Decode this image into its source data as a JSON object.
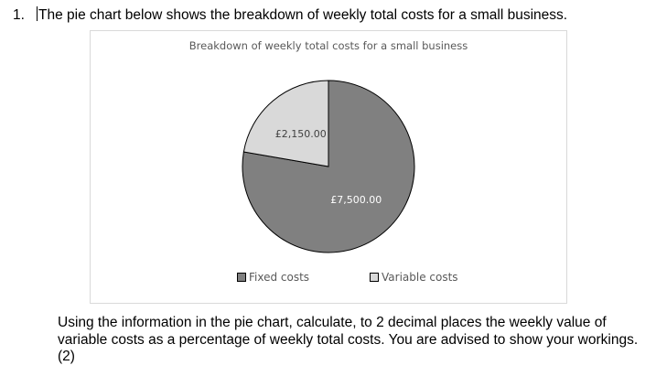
{
  "question": {
    "number": "1.",
    "intro": "The pie chart below shows the breakdown of weekly total costs for a small business.",
    "instruction": "Using the information in the pie chart, calculate, to 2 decimal places the weekly value of variable costs as a percentage of weekly total costs. You are advised to show your workings.",
    "marks": "(2)"
  },
  "chart_data": {
    "type": "pie",
    "title": "Breakdown of weekly total costs for a small business",
    "slices": [
      {
        "name": "Fixed costs",
        "value": 7500,
        "label": "£7,500.00",
        "color": "#808080",
        "label_color": "#ffffff"
      },
      {
        "name": "Variable costs",
        "value": 2150,
        "label": "£2,150.00",
        "color": "#d9d9d9",
        "label_color": "#404040"
      }
    ],
    "legend_position": "bottom"
  }
}
